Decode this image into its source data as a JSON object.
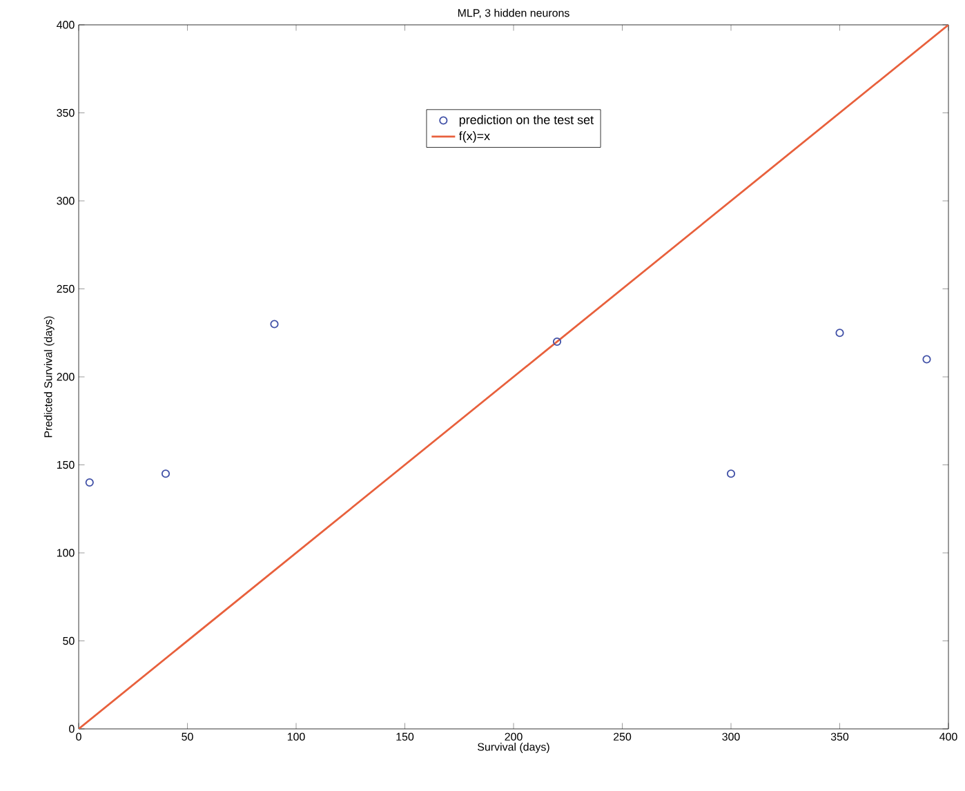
{
  "chart_data": {
    "type": "scatter",
    "title": "MLP, 3 hidden neurons",
    "xlabel": "Survival (days)",
    "ylabel": "Predicted Survival (days)",
    "series": [
      {
        "name": "prediction on the test set",
        "marker": "circle",
        "color": "#3f4fa6",
        "x": [
          5,
          40,
          90,
          220,
          300,
          350,
          390
        ],
        "values": [
          140,
          145,
          230,
          220,
          145,
          225,
          210
        ]
      },
      {
        "name": "f(x)=x",
        "type": "line",
        "marker": "none",
        "color": "#e8603c",
        "x": [
          0,
          400
        ],
        "values": [
          0,
          400
        ]
      }
    ],
    "xlim": [
      0,
      400
    ],
    "ylim": [
      0,
      400
    ],
    "xticks": [
      0,
      50,
      100,
      150,
      200,
      250,
      300,
      350,
      400
    ],
    "yticks": [
      0,
      50,
      100,
      150,
      200,
      250,
      300,
      350,
      400
    ],
    "line_style": "solid",
    "legend": "top",
    "grid": false
  }
}
